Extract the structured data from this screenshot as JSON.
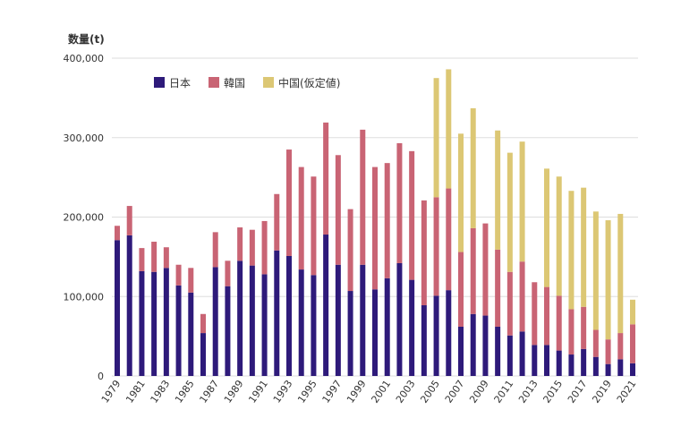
{
  "chart_data": {
    "type": "bar",
    "stacked": true,
    "ylabel": "数量(t)",
    "ylim": [
      0,
      400000
    ],
    "yticks": [
      "0",
      "100,000",
      "200,000",
      "300,000",
      "400,000"
    ],
    "ytick_values": [
      0,
      100000,
      200000,
      300000,
      400000
    ],
    "legend_position": "top-left",
    "categories": [
      "1979",
      "1980",
      "1981",
      "1982",
      "1983",
      "1984",
      "1985",
      "1986",
      "1987",
      "1988",
      "1989",
      "1990",
      "1991",
      "1992",
      "1993",
      "1994",
      "1995",
      "1996",
      "1997",
      "1998",
      "1999",
      "2000",
      "2001",
      "2002",
      "2003",
      "2004",
      "2005",
      "2006",
      "2007",
      "2008",
      "2009",
      "2010",
      "2011",
      "2012",
      "2013",
      "2014",
      "2015",
      "2016",
      "2017",
      "2018",
      "2019",
      "2020",
      "2021"
    ],
    "series": [
      {
        "name": "日本",
        "color": "#2e1a7a",
        "values": [
          171000,
          177000,
          132000,
          131000,
          136000,
          114000,
          105000,
          54000,
          137000,
          113000,
          145000,
          139000,
          128000,
          158000,
          151000,
          134000,
          127000,
          178000,
          140000,
          107000,
          140000,
          109000,
          123000,
          142000,
          121000,
          89000,
          101000,
          108000,
          62000,
          78000,
          76000,
          62000,
          51000,
          56000,
          39000,
          39000,
          32000,
          27000,
          34000,
          24000,
          15000,
          21000,
          16000
        ]
      },
      {
        "name": "韓国",
        "color": "#c96474",
        "values": [
          18000,
          37000,
          29000,
          38000,
          26000,
          26000,
          31000,
          24000,
          44000,
          32000,
          42000,
          45000,
          67000,
          71000,
          134000,
          129000,
          124000,
          141000,
          138000,
          103000,
          170000,
          154000,
          145000,
          151000,
          162000,
          132000,
          124000,
          128000,
          94000,
          108000,
          116000,
          97000,
          80000,
          88000,
          79000,
          73000,
          69000,
          57000,
          53000,
          34000,
          31000,
          33000,
          49000
        ]
      },
      {
        "name": "中国(仮定値)",
        "color": "#dcc774",
        "values": [
          0,
          0,
          0,
          0,
          0,
          0,
          0,
          0,
          0,
          0,
          0,
          0,
          0,
          0,
          0,
          0,
          0,
          0,
          0,
          0,
          0,
          0,
          0,
          0,
          0,
          0,
          150000,
          150000,
          149000,
          151000,
          0,
          150000,
          150000,
          151000,
          0,
          149000,
          150000,
          149000,
          150000,
          149000,
          150000,
          150000,
          31000
        ]
      }
    ]
  }
}
